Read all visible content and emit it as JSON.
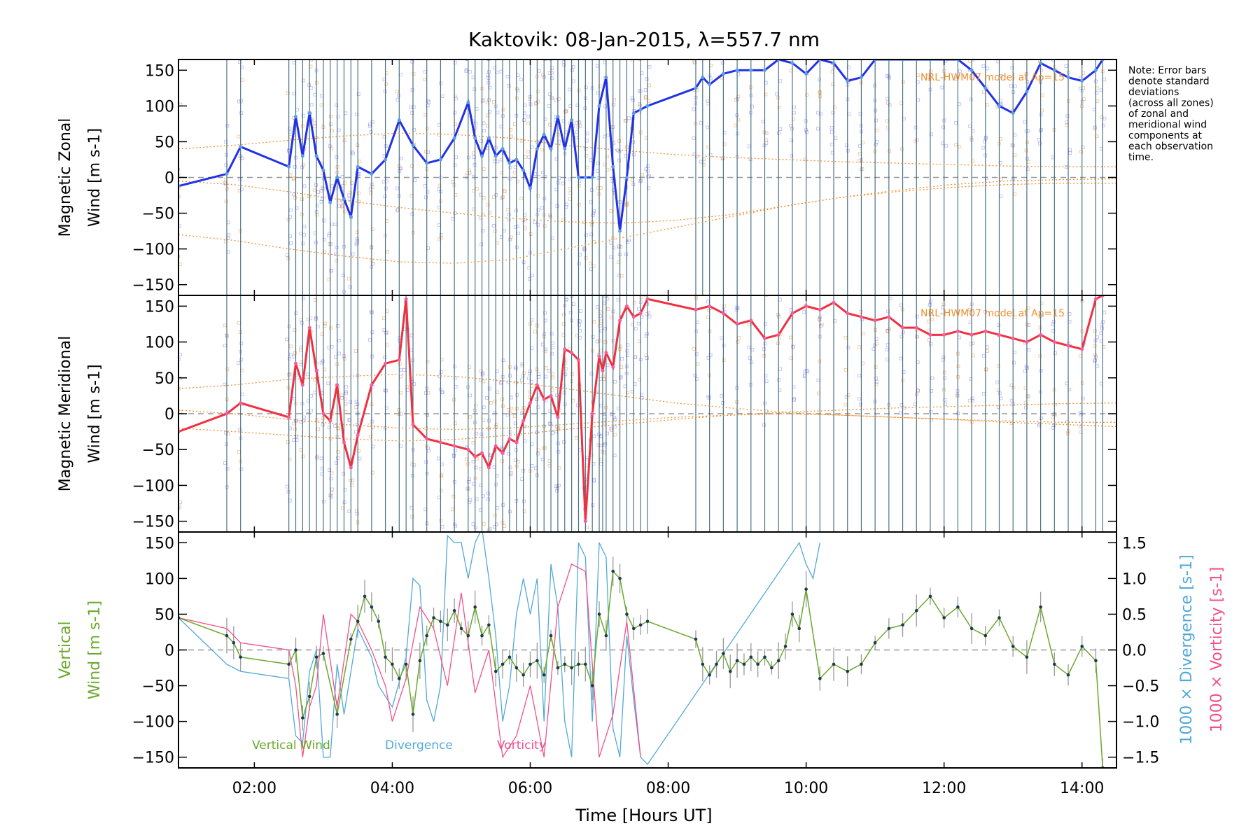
{
  "title": "Kaktovik: 08-Jan-2015, λ=557.7 nm",
  "note_lines": [
    "Note: Error bars",
    "denote standard",
    "deviations",
    "(across all zones)",
    "of zonal and",
    "meridional wind",
    "components at",
    "each observation",
    "time."
  ],
  "model_labels": {
    "zonal": "NRL-HWM07 model at Ap=15",
    "meridional": "NRL-HWM07 model at Ap=15"
  },
  "colors": {
    "zonal": "#2230e8",
    "zonal_pts": "#5aa0e0",
    "meridional": "#f03040",
    "meridional_pts": "#f060a0",
    "vertical": "#6aa82a",
    "divergence": "#52a8d8",
    "vorticity": "#f0508c",
    "model": "#f09030",
    "error_bars": "#2a5a70",
    "scatter": "#8080f0"
  },
  "chart_data": [
    {
      "type": "line",
      "panel": "zonal",
      "ylabel_lines": [
        "Magnetic Zonal",
        "Wind [m s-1]"
      ],
      "ylim": [
        -165,
        165
      ],
      "yticks": [
        "150",
        "100",
        "50",
        "0",
        "−50",
        "−100",
        "−150"
      ],
      "ytick_values": [
        150,
        100,
        50,
        0,
        -50,
        -100,
        -150
      ],
      "series": [
        {
          "x": [
            0.9,
            1.6,
            1.8,
            2.5,
            2.6,
            2.7,
            2.8,
            2.9,
            3.0,
            3.1,
            3.2,
            3.3,
            3.4,
            3.5,
            3.7,
            3.9,
            4.1,
            4.3,
            4.5,
            4.7,
            4.9,
            5.1,
            5.2,
            5.3,
            5.4,
            5.5,
            5.6,
            5.7,
            5.8,
            5.9,
            6.0,
            6.1,
            6.2,
            6.3,
            6.4,
            6.5,
            6.6,
            6.7,
            6.8,
            6.9,
            7.0,
            7.1,
            7.2,
            7.3,
            7.4,
            7.5,
            7.6,
            7.7,
            8.4,
            8.5,
            8.6,
            8.8,
            9.0,
            9.2,
            9.4,
            9.6,
            9.8,
            10.0,
            10.2,
            10.4,
            10.6,
            10.8,
            11.0,
            11.2,
            11.4,
            11.6,
            11.8,
            12.0,
            12.2,
            12.4,
            12.6,
            12.8,
            13.0,
            13.2,
            13.4,
            13.6,
            13.8,
            14.0,
            14.2,
            14.3
          ],
          "y": [
            -12,
            5,
            43,
            15,
            85,
            30,
            90,
            30,
            10,
            -35,
            0,
            -30,
            -55,
            15,
            5,
            25,
            80,
            45,
            20,
            25,
            55,
            105,
            55,
            30,
            55,
            30,
            40,
            20,
            25,
            10,
            -15,
            40,
            60,
            40,
            85,
            40,
            80,
            0,
            0,
            0,
            100,
            140,
            15,
            -75,
            0,
            90,
            95,
            100,
            125,
            140,
            130,
            145,
            150,
            150,
            150,
            165,
            160,
            145,
            165,
            160,
            135,
            140,
            165,
            165,
            165,
            165,
            165,
            165,
            165,
            150,
            125,
            100,
            90,
            120,
            160,
            150,
            140,
            135,
            150,
            165
          ]
        }
      ],
      "model_curves": [
        [
          40,
          45,
          52,
          58,
          62,
          60,
          55,
          45,
          38,
          32,
          28,
          25,
          22,
          20,
          18,
          16,
          15,
          15
        ],
        [
          -5,
          -10,
          -20,
          -32,
          -42,
          -50,
          -57,
          -62,
          -64,
          -60,
          -52,
          -40,
          -28,
          -18,
          -10,
          -5,
          -3,
          -2
        ],
        [
          -80,
          -88,
          -100,
          -110,
          -118,
          -120,
          -115,
          -100,
          -85,
          -70,
          -55,
          -40,
          -28,
          -20,
          -14,
          -10,
          -8,
          -8
        ]
      ]
    },
    {
      "type": "line",
      "panel": "meridional",
      "ylabel_lines": [
        "Magnetic Meridional",
        "Wind [m s-1]"
      ],
      "ylim": [
        -165,
        165
      ],
      "yticks": [
        "150",
        "100",
        "50",
        "0",
        "−50",
        "−100",
        "−150"
      ],
      "ytick_values": [
        150,
        100,
        50,
        0,
        -50,
        -100,
        -150
      ],
      "series": [
        {
          "x": [
            0.9,
            1.6,
            1.8,
            2.5,
            2.6,
            2.7,
            2.8,
            2.9,
            3.0,
            3.1,
            3.2,
            3.3,
            3.4,
            3.5,
            3.7,
            3.9,
            4.1,
            4.2,
            4.3,
            4.5,
            4.7,
            4.9,
            5.1,
            5.2,
            5.3,
            5.4,
            5.5,
            5.6,
            5.7,
            5.8,
            5.9,
            6.0,
            6.1,
            6.2,
            6.3,
            6.4,
            6.5,
            6.6,
            6.7,
            6.8,
            6.9,
            7.0,
            7.05,
            7.1,
            7.2,
            7.3,
            7.4,
            7.5,
            7.6,
            7.7,
            8.4,
            8.6,
            8.8,
            9.0,
            9.2,
            9.4,
            9.6,
            9.8,
            10.0,
            10.2,
            10.4,
            10.6,
            10.8,
            11.0,
            11.2,
            11.4,
            11.6,
            11.8,
            12.0,
            12.2,
            12.4,
            12.6,
            12.8,
            13.0,
            13.2,
            13.4,
            13.6,
            13.8,
            14.0,
            14.2,
            14.3
          ],
          "y": [
            -25,
            0,
            15,
            -5,
            70,
            40,
            120,
            60,
            0,
            -10,
            40,
            -40,
            -75,
            -30,
            40,
            70,
            75,
            160,
            -15,
            -35,
            -40,
            -45,
            -50,
            -60,
            -55,
            -75,
            -45,
            -55,
            -35,
            -40,
            -10,
            15,
            40,
            20,
            25,
            -5,
            90,
            85,
            75,
            -150,
            0,
            80,
            60,
            85,
            65,
            130,
            150,
            135,
            140,
            160,
            145,
            150,
            140,
            125,
            130,
            105,
            110,
            140,
            150,
            145,
            155,
            140,
            135,
            130,
            135,
            120,
            120,
            110,
            110,
            115,
            110,
            115,
            110,
            105,
            100,
            110,
            100,
            95,
            90,
            160,
            170
          ]
        }
      ],
      "model_curves": [
        [
          35,
          40,
          48,
          52,
          55,
          52,
          45,
          35,
          25,
          15,
          8,
          2,
          -2,
          -5,
          -8,
          -10,
          -12,
          -12
        ],
        [
          -20,
          -25,
          -30,
          -35,
          -38,
          -36,
          -30,
          -22,
          -15,
          -8,
          -2,
          2,
          5,
          8,
          10,
          12,
          14,
          15
        ],
        [
          5,
          0,
          -8,
          -15,
          -20,
          -22,
          -20,
          -15,
          -10,
          -5,
          -2,
          0,
          -2,
          -5,
          -8,
          -12,
          -15,
          -18
        ]
      ]
    },
    {
      "type": "line",
      "panel": "vertical",
      "ylabel_lines": [
        "Vertical",
        "Wind [m s-1]"
      ],
      "ylim": [
        -165,
        165
      ],
      "yticks": [
        "150",
        "100",
        "50",
        "0",
        "−50",
        "−100",
        "−150"
      ],
      "ytick_values": [
        150,
        100,
        50,
        0,
        -50,
        -100,
        -150
      ],
      "y2ticks": [
        "1.5",
        "1.0",
        "0.5",
        "0.0",
        "−0.5",
        "−1.0",
        "−1.5"
      ],
      "y2tick_values": [
        1.5,
        1.0,
        0.5,
        0.0,
        -0.5,
        -1.0,
        -1.5
      ],
      "y2labels": [
        "1000 × Divergence [s-1]",
        "1000 × Vorticity [s-1]"
      ],
      "series": [
        {
          "name": "Vertical Wind",
          "x": [
            0.9,
            1.6,
            1.7,
            1.8,
            2.5,
            2.6,
            2.7,
            2.8,
            2.9,
            3.0,
            3.2,
            3.4,
            3.5,
            3.6,
            3.7,
            3.8,
            3.9,
            4.0,
            4.1,
            4.2,
            4.3,
            4.4,
            4.5,
            4.6,
            4.7,
            4.8,
            4.9,
            5.0,
            5.1,
            5.2,
            5.3,
            5.4,
            5.5,
            5.6,
            5.7,
            5.8,
            5.9,
            6.0,
            6.1,
            6.2,
            6.3,
            6.4,
            6.5,
            6.6,
            6.7,
            6.8,
            6.9,
            7.0,
            7.1,
            7.2,
            7.3,
            7.4,
            7.5,
            7.6,
            7.7,
            8.4,
            8.5,
            8.6,
            8.7,
            8.8,
            8.9,
            9.0,
            9.1,
            9.2,
            9.3,
            9.4,
            9.5,
            9.6,
            9.7,
            9.8,
            9.9,
            10.0,
            10.2,
            10.4,
            10.6,
            10.8,
            11.0,
            11.2,
            11.4,
            11.6,
            11.8,
            12.0,
            12.2,
            12.4,
            12.6,
            12.8,
            13.0,
            13.2,
            13.4,
            13.6,
            13.8,
            14.0,
            14.2,
            14.3
          ],
          "y": [
            45,
            20,
            10,
            -10,
            -20,
            0,
            -95,
            -65,
            -10,
            -5,
            -90,
            15,
            40,
            75,
            60,
            40,
            -10,
            -20,
            -40,
            -20,
            -90,
            -15,
            20,
            45,
            40,
            35,
            55,
            30,
            20,
            60,
            20,
            35,
            -30,
            -20,
            -10,
            -25,
            -35,
            -20,
            -15,
            -35,
            20,
            -25,
            -20,
            -25,
            -20,
            -20,
            -50,
            50,
            20,
            110,
            100,
            50,
            30,
            35,
            40,
            15,
            -20,
            -35,
            -20,
            -5,
            -30,
            -15,
            -20,
            -10,
            -20,
            -10,
            -25,
            -15,
            5,
            50,
            30,
            85,
            -40,
            -20,
            -30,
            -20,
            10,
            30,
            35,
            55,
            75,
            45,
            60,
            30,
            20,
            45,
            5,
            -10,
            60,
            -20,
            -35,
            5,
            -15,
            -165
          ]
        },
        {
          "name": "Divergence",
          "x": [
            0.9,
            1.6,
            1.8,
            2.5,
            2.6,
            2.7,
            2.8,
            2.9,
            3.0,
            3.1,
            3.2,
            3.3,
            3.5,
            3.7,
            3.8,
            4.0,
            4.2,
            4.3,
            4.4,
            4.5,
            4.6,
            4.7,
            4.8,
            4.9,
            5.0,
            5.1,
            5.2,
            5.3,
            5.4,
            5.5,
            5.6,
            5.7,
            5.8,
            5.9,
            6.0,
            6.1,
            6.2,
            6.3,
            6.4,
            6.5,
            6.6,
            6.7,
            6.8,
            6.9,
            7.0,
            7.1,
            7.2,
            7.3,
            7.4,
            7.5,
            7.6,
            7.7,
            9.9,
            10.0,
            10.1,
            10.2
          ],
          "y": [
            0.45,
            -0.2,
            -0.3,
            -0.4,
            -1.2,
            -1.3,
            -0.3,
            0.0,
            -1.5,
            -1.5,
            -0.2,
            -0.9,
            0.3,
            -0.1,
            -0.5,
            -0.8,
            -0.1,
            1.0,
            0.9,
            -0.7,
            -1.0,
            -0.5,
            1.6,
            1.5,
            1.5,
            1.0,
            1.5,
            1.7,
            1.0,
            0.2,
            -1.0,
            -0.5,
            0.5,
            1.0,
            0.5,
            1.0,
            -1.0,
            1.2,
            0.6,
            -1.0,
            -1.5,
            1.5,
            1.3,
            -1.0,
            1.5,
            1.3,
            -1.1,
            -1.5,
            0.2,
            -0.7,
            -1.5,
            -1.6,
            1.5,
            1.2,
            1.0,
            1.5
          ]
        },
        {
          "name": "Vorticity",
          "x": [
            0.9,
            1.6,
            1.8,
            2.5,
            2.6,
            2.7,
            2.8,
            2.9,
            3.0,
            3.2,
            3.4,
            3.5,
            3.7,
            3.9,
            4.0,
            4.2,
            4.4,
            4.6,
            4.8,
            5.0,
            5.2,
            5.4,
            5.6,
            5.8,
            6.0,
            6.2,
            6.4,
            6.6,
            6.8,
            7.0,
            7.2,
            7.4,
            7.6
          ],
          "y": [
            0.45,
            0.3,
            0.1,
            0.0,
            -0.5,
            -1.5,
            -0.8,
            -0.5,
            0.5,
            -0.8,
            0.5,
            0.4,
            0.0,
            -0.5,
            -1.0,
            -0.4,
            0.6,
            0.3,
            -0.5,
            0.8,
            -0.6,
            0.0,
            -1.5,
            -1.2,
            -0.5,
            -1.5,
            0.6,
            1.2,
            1.1,
            -1.5,
            -0.9,
            0.4,
            -1.5
          ]
        }
      ],
      "legend": [
        "Vertical Wind",
        "Divergence",
        "Vorticity"
      ]
    }
  ],
  "x_axis": {
    "label": "Time [Hours UT]",
    "xlim": [
      0.9,
      14.5
    ],
    "ticks": [
      "02:00",
      "04:00",
      "06:00",
      "08:00",
      "10:00",
      "12:00",
      "14:00"
    ],
    "tick_values": [
      2,
      4,
      6,
      8,
      10,
      12,
      14
    ]
  }
}
